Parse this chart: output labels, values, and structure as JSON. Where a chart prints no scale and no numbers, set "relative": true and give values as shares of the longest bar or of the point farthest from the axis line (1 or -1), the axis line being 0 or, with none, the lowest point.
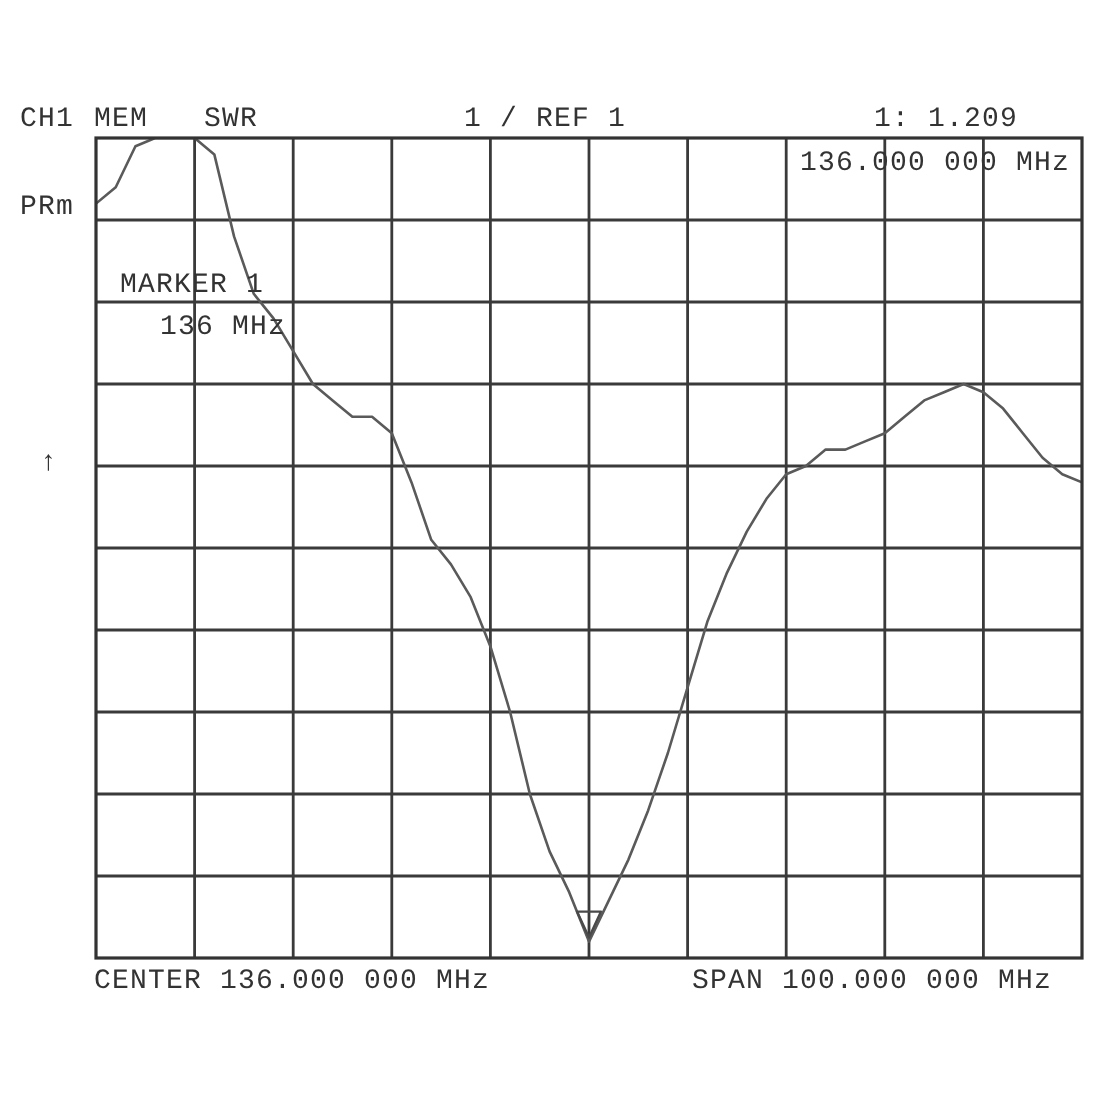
{
  "chart_data": {
    "type": "line",
    "relative": true,
    "categories": [
      null,
      null,
      null,
      null,
      null,
      null,
      null,
      null,
      null,
      null,
      null,
      null,
      null,
      null,
      null,
      null,
      null,
      null,
      null,
      null,
      null,
      null,
      null,
      null,
      null,
      null,
      null,
      null,
      null,
      null,
      null,
      null,
      null,
      null,
      null,
      null,
      null,
      null,
      null,
      null,
      null,
      null,
      null,
      null,
      null,
      null,
      null,
      null,
      null,
      null,
      null
    ],
    "series": [
      {
        "color": "#5a5a5a",
        "values": [
          0.92,
          0.94,
          0.99,
          1,
          1,
          1,
          0.98,
          0.88,
          0.81,
          0.78,
          0.74,
          0.7,
          0.68,
          0.66,
          0.66,
          0.64,
          0.58,
          0.51,
          0.48,
          0.44,
          0.38,
          0.3,
          0.2,
          0.13,
          0.08,
          0.02,
          0.07,
          0.12,
          0.18,
          0.25,
          0.33,
          0.41,
          0.47,
          0.52,
          0.56,
          0.59,
          0.6,
          0.62,
          0.62,
          0.63,
          0.64,
          0.66,
          0.68,
          0.69,
          0.7,
          0.69,
          0.67,
          0.64,
          0.61,
          0.59,
          0.58
        ]
      }
    ],
    "grid": true,
    "line_style": "solid",
    "annotations": [
      "CH1",
      "MEM",
      "SWR",
      "1 / REF 1",
      "1: 1.209",
      "136.000 000 MHz",
      "PRm",
      "MARKER 1",
      "136 MHz",
      "↑",
      "CENTER 136.000 000 MHz",
      "SPAN 100.000 000 MHz"
    ]
  }
}
